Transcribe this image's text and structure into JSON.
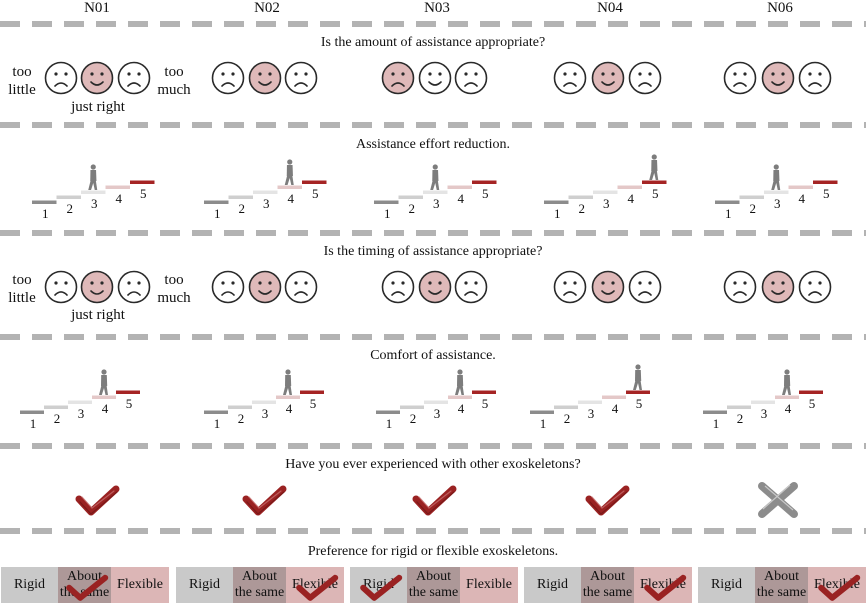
{
  "participants": [
    "N01",
    "N02",
    "N03",
    "N04",
    "N06"
  ],
  "questions": {
    "amount": "Is the amount of assistance appropriate?",
    "effort": "Assistance effort reduction.",
    "timing": "Is the timing of assistance appropriate?",
    "comfort": "Comfort of assistance.",
    "experience": "Have you ever experienced with other exoskeletons?",
    "preference": "Preference for rigid or flexible exoskeletons."
  },
  "scale_labels": {
    "too": "too",
    "little": "little",
    "much": "much",
    "just_right": "just right"
  },
  "likert_steps": [
    "1",
    "2",
    "3",
    "4",
    "5"
  ],
  "preference_options": {
    "rigid": "Rigid",
    "same_line1": "About",
    "same_line2": "the same",
    "flexible": "Flexible"
  },
  "colors": {
    "highlight": "#dfb9b9",
    "dash": "#b3b3b3",
    "check": "#9a2222",
    "cross": "#8c8c8c"
  },
  "responses": {
    "amount": [
      "just right",
      "just right",
      "too little",
      "just right",
      "just right"
    ],
    "effort": [
      3,
      4,
      3,
      5,
      3
    ],
    "timing": [
      "just right",
      "just right",
      "just right",
      "just right",
      "just right"
    ],
    "comfort": [
      4,
      4,
      4,
      5,
      4
    ],
    "experience": [
      "yes",
      "yes",
      "yes",
      "yes",
      "no"
    ],
    "preference": [
      "About the same",
      "Flexible",
      "Rigid",
      "Flexible",
      "Flexible"
    ]
  }
}
